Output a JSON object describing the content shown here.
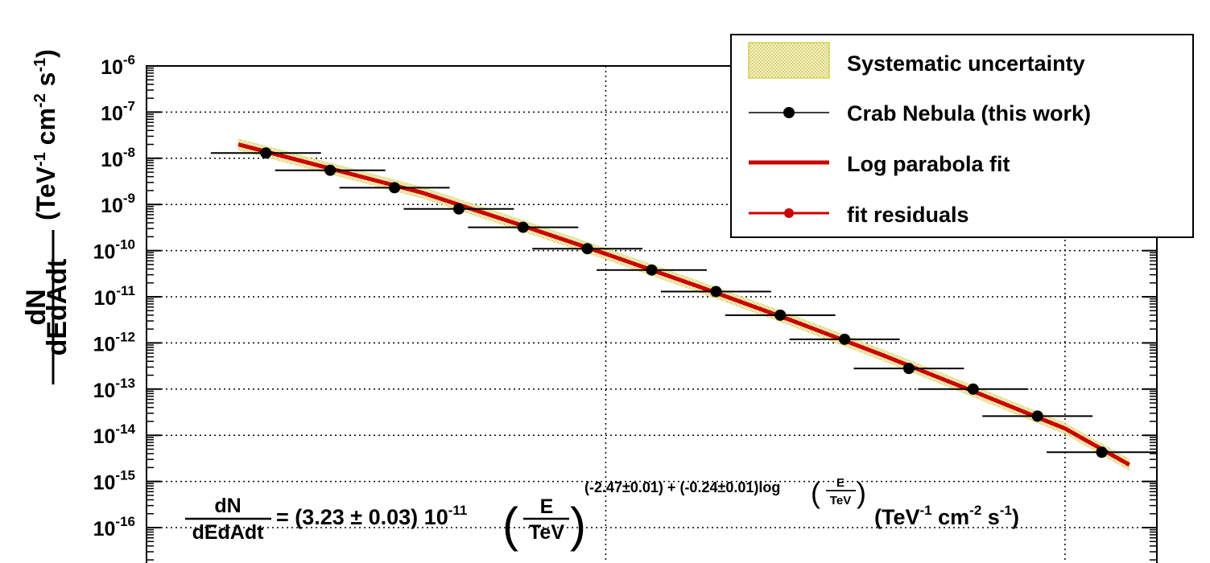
{
  "chart_data": {
    "type": "line",
    "xscale": "log",
    "yscale": "log",
    "xlim_log10": [
      -1.0,
      0.1
    ],
    "ylim": [
      1e-17,
      1e-06
    ],
    "grid": true,
    "ylabel": {
      "numerator": "dN",
      "denominator": "dEdAdt",
      "units": [
        "(TeV",
        "-1",
        " cm",
        "-2",
        " s",
        "-1",
        ")"
      ]
    },
    "y_ticks": [
      {
        "base": "10",
        "exp": "-6",
        "value": 1e-06
      },
      {
        "base": "10",
        "exp": "-7",
        "value": 1e-07
      },
      {
        "base": "10",
        "exp": "-8",
        "value": 1e-08
      },
      {
        "base": "10",
        "exp": "-9",
        "value": 1e-09
      },
      {
        "base": "10",
        "exp": "-10",
        "value": 1e-10
      },
      {
        "base": "10",
        "exp": "-11",
        "value": 1e-11
      },
      {
        "base": "10",
        "exp": "-12",
        "value": 1e-12
      },
      {
        "base": "10",
        "exp": "-13",
        "value": 1e-13
      },
      {
        "base": "10",
        "exp": "-14",
        "value": 1e-14
      },
      {
        "base": "10",
        "exp": "-15",
        "value": 1e-15
      },
      {
        "base": "10",
        "exp": "-16",
        "value": 1e-16
      }
    ],
    "legend": {
      "placement": "top-right",
      "entries": [
        {
          "label": "Systematic uncertainty",
          "style": "band",
          "color": "#d6d24a"
        },
        {
          "label": "Crab Nebula (this work)",
          "style": "points",
          "color": "#000000"
        },
        {
          "label": "Log parabola fit",
          "style": "line",
          "color": "#cc0000"
        },
        {
          "label": "fit residuals",
          "style": "line-marker",
          "color": "#cc0000"
        }
      ]
    },
    "series": [
      {
        "name": "Crab Nebula (this work)",
        "color": "#000000",
        "points": [
          {
            "log10E": -0.87,
            "log10E_lo": -0.93,
            "log10E_hi": -0.81,
            "flux": 1.3e-08
          },
          {
            "log10E": -0.8,
            "log10E_lo": -0.86,
            "log10E_hi": -0.74,
            "flux": 5.5e-09
          },
          {
            "log10E": -0.73,
            "log10E_lo": -0.79,
            "log10E_hi": -0.67,
            "flux": 2.3e-09
          },
          {
            "log10E": -0.66,
            "log10E_lo": -0.72,
            "log10E_hi": -0.6,
            "flux": 8e-10
          },
          {
            "log10E": -0.59,
            "log10E_lo": -0.65,
            "log10E_hi": -0.53,
            "flux": 3.2e-10
          },
          {
            "log10E": -0.52,
            "log10E_lo": -0.58,
            "log10E_hi": -0.46,
            "flux": 1.1e-10
          },
          {
            "log10E": -0.45,
            "log10E_lo": -0.51,
            "log10E_hi": -0.39,
            "flux": 3.8e-11
          },
          {
            "log10E": -0.38,
            "log10E_lo": -0.44,
            "log10E_hi": -0.32,
            "flux": 1.3e-11
          },
          {
            "log10E": -0.31,
            "log10E_lo": -0.37,
            "log10E_hi": -0.25,
            "flux": 4e-12
          },
          {
            "log10E": -0.24,
            "log10E_lo": -0.3,
            "log10E_hi": -0.18,
            "flux": 1.2e-12
          },
          {
            "log10E": -0.17,
            "log10E_lo": -0.23,
            "log10E_hi": -0.11,
            "flux": 2.8e-13
          },
          {
            "log10E": -0.1,
            "log10E_lo": -0.16,
            "log10E_hi": -0.04,
            "flux": 1e-13
          },
          {
            "log10E": -0.03,
            "log10E_lo": -0.09,
            "log10E_hi": 0.03,
            "flux": 2.6e-14
          },
          {
            "log10E": 0.04,
            "log10E_lo": -0.02,
            "log10E_hi": 0.1,
            "flux": 4.3e-15
          }
        ]
      },
      {
        "name": "Log parabola fit",
        "color": "#cc0000",
        "curve": [
          {
            "log10E": -0.9,
            "flux": 2e-08
          },
          {
            "log10E": -0.8,
            "flux": 6e-09
          },
          {
            "log10E": -0.7,
            "flux": 1.8e-09
          },
          {
            "log10E": -0.6,
            "flux": 4e-10
          },
          {
            "log10E": -0.5,
            "flux": 8.5e-11
          },
          {
            "log10E": -0.4,
            "flux": 1.7e-11
          },
          {
            "log10E": -0.3,
            "flux": 3.2e-12
          },
          {
            "log10E": -0.2,
            "flux": 5.6e-13
          },
          {
            "log10E": -0.1,
            "flux": 9e-14
          },
          {
            "log10E": 0.0,
            "flux": 1.4e-14
          },
          {
            "log10E": 0.07,
            "flux": 2.3e-15
          }
        ],
        "band_halfwidth_decades": 0.12
      }
    ],
    "formula": {
      "lhs_numerator": "dN",
      "lhs_denominator": "dEdAdt",
      "equals_norm": "= (3.23 ± 0.03) 10",
      "norm_exp": "-11",
      "ratio_numerator": "E",
      "ratio_denominator": "TeV",
      "index_text": "(-2.47±0.01) + (-0.24±0.01)log",
      "index_ratio_numerator": "E",
      "index_ratio_denominator": "TeV",
      "units": [
        "(TeV",
        "-1",
        " cm",
        "-2",
        " s",
        "-1",
        ")"
      ]
    }
  }
}
